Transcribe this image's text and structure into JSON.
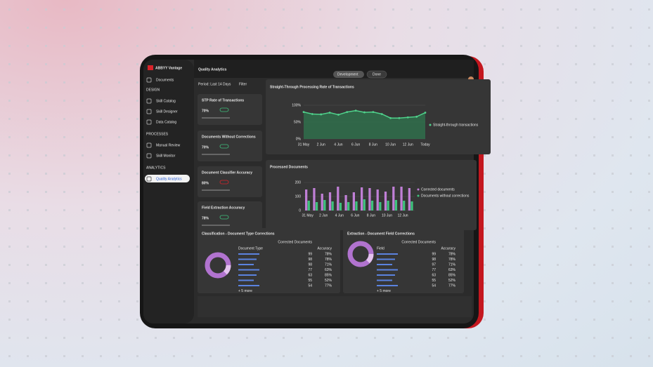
{
  "sidebar": {
    "logo": "ABBYY Vantage",
    "top_item": "Documents",
    "sections": [
      {
        "label": "DESIGN",
        "items": [
          "Skill Catalog",
          "Skill Designer",
          "Data Catalog"
        ]
      },
      {
        "label": "PROCESSES",
        "items": [
          "Manual Review",
          "Skill Monitor"
        ]
      },
      {
        "label": "ANALYTICS",
        "items": [
          "Quality Analytics"
        ]
      }
    ]
  },
  "header": {
    "title": "Quality Analytics",
    "period": "Period: Last 14 Days",
    "filter": "Filter",
    "project": "Development",
    "status": "Done"
  },
  "kpis": [
    {
      "title": "STP Rate of Transactions",
      "value": "70%"
    },
    {
      "title": "Documents Without Corrections",
      "value": "70%"
    },
    {
      "title": "Document Classifier Accuracy",
      "value": "80%"
    },
    {
      "title": "Field Extraction Accuracy",
      "value": "78%"
    }
  ],
  "chart_data": [
    {
      "type": "line",
      "title": "Straight-Through Processing Rate of Transactions",
      "categories": [
        "31 May",
        null,
        "2 Jun",
        null,
        "4 Jun",
        null,
        "6 Jun",
        null,
        "8 Jun",
        null,
        "10 Jun",
        null,
        "12 Jun",
        null,
        "Today"
      ],
      "series": [
        {
          "name": "Straight-through transactions",
          "color": "#4fd18b",
          "values": [
            80,
            74,
            73,
            78,
            72,
            80,
            84,
            79,
            80,
            74,
            62,
            62,
            64,
            66,
            78
          ]
        }
      ],
      "ylim": [
        0,
        100
      ],
      "yticks": [
        {
          "value": 0,
          "label": "0%"
        },
        {
          "value": 50,
          "label": "50%"
        },
        {
          "value": 100,
          "label": "100%"
        }
      ],
      "grid": true
    },
    {
      "type": "bar",
      "title": "Processed Documents",
      "categories": [
        "31 May",
        null,
        "2 Jun",
        null,
        "4 Jun",
        null,
        "6 Jun",
        null,
        "8 Jun",
        null,
        "10 Jun",
        null,
        "12 Jun",
        null
      ],
      "series": [
        {
          "name": "Corrected documents",
          "color": "#c07fd6",
          "values": [
            150,
            160,
            120,
            130,
            170,
            110,
            130,
            165,
            160,
            150,
            135,
            170,
            170,
            160
          ]
        },
        {
          "name": "Documents without corrections",
          "color": "#3fc27d",
          "values": [
            70,
            60,
            75,
            65,
            55,
            60,
            65,
            80,
            70,
            60,
            70,
            75,
            70,
            65
          ]
        }
      ],
      "ylim": [
        0,
        200
      ],
      "yticks": [
        0,
        100,
        200
      ],
      "grid": true
    }
  ],
  "tables": [
    {
      "title": "Classification - Document Type Corrections",
      "columns": [
        "Document Type",
        "Corrected Documents",
        "Accuracy"
      ],
      "rows": [
        [
          99,
          "78%"
        ],
        [
          98,
          "78%"
        ],
        [
          98,
          "71%"
        ],
        [
          77,
          "63%"
        ],
        [
          63,
          "85%"
        ],
        [
          55,
          "52%"
        ],
        [
          54,
          "77%"
        ]
      ],
      "more": "+ 5 more"
    },
    {
      "title": "Extraction - Document Field Corrections",
      "columns": [
        "Field",
        "Corrected Documents",
        "Accuracy"
      ],
      "rows": [
        [
          99,
          "78%"
        ],
        [
          98,
          "78%"
        ],
        [
          97,
          "71%"
        ],
        [
          77,
          "63%"
        ],
        [
          63,
          "85%"
        ],
        [
          55,
          "52%"
        ],
        [
          54,
          "77%"
        ]
      ],
      "more": "+ 5 more"
    }
  ]
}
